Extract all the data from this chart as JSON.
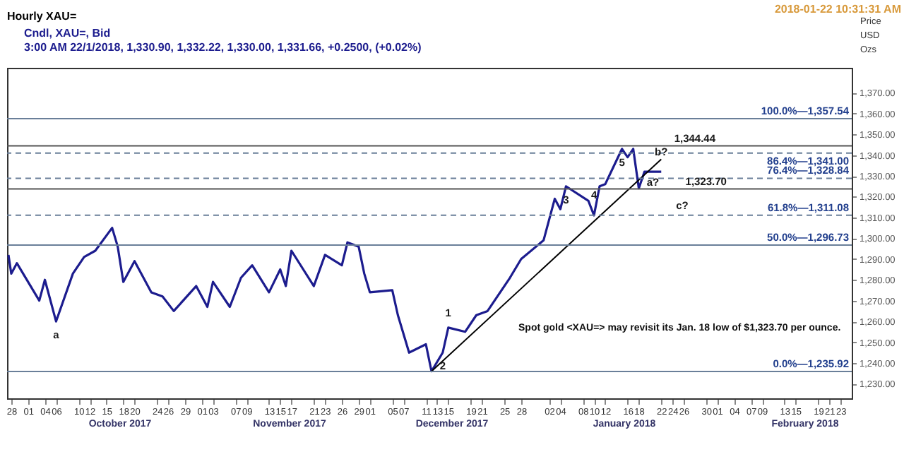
{
  "chart_data": {
    "type": "line",
    "title": "Hourly XAU=",
    "subtitle": "Cndl, XAU=, Bid\n3:00 AM 22/1/2018, 1,330.90, 1,332.22, 1,330.00, 1,331.66, +0.2500, (+0.02%)",
    "ylabel": "Price USD Ozs",
    "series": [
      {
        "color": "#1c1c8e",
        "line_style": "solid",
        "x": [
          "2017-09-27T12:00",
          "2017-09-28",
          "2017-09-29",
          "2017-10-03",
          "2017-10-04",
          "2017-10-06",
          "2017-10-09",
          "2017-10-11",
          "2017-10-13",
          "2017-10-16",
          "2017-10-17",
          "2017-10-18",
          "2017-10-20",
          "2017-10-23",
          "2017-10-25",
          "2017-10-27",
          "2017-10-31",
          "2017-11-02",
          "2017-11-03",
          "2017-11-06",
          "2017-11-08",
          "2017-11-10",
          "2017-11-13",
          "2017-11-15",
          "2017-11-16",
          "2017-11-17",
          "2017-11-21",
          "2017-11-23",
          "2017-11-26",
          "2017-11-27",
          "2017-11-29",
          "2017-11-30",
          "2017-12-01",
          "2017-12-05",
          "2017-12-06",
          "2017-12-08",
          "2017-12-11",
          "2017-12-12",
          "2017-12-14",
          "2017-12-15",
          "2017-12-18",
          "2017-12-20",
          "2017-12-22",
          "2017-12-26",
          "2017-12-28",
          "2018-01-01",
          "2018-01-03",
          "2018-01-04",
          "2018-01-05",
          "2018-01-09",
          "2018-01-10",
          "2018-01-11",
          "2018-01-12",
          "2018-01-15",
          "2018-01-16",
          "2018-01-17",
          "2018-01-18",
          "2018-01-19",
          "2018-01-22"
        ],
        "values": [
          1292,
          1283,
          1288,
          1270,
          1280,
          1260,
          1283,
          1291,
          1294,
          1305,
          1296,
          1279,
          1289,
          1274,
          1272,
          1265,
          1277,
          1267,
          1279,
          1267,
          1281,
          1287,
          1274,
          1285,
          1277,
          1294,
          1277,
          1292,
          1287,
          1298,
          1296,
          1283,
          1274,
          1275,
          1263,
          1245,
          1249,
          1236,
          1245,
          1257,
          1255,
          1263,
          1265,
          1281,
          1290,
          1299,
          1319,
          1314,
          1325,
          1318,
          1311,
          1325,
          1326,
          1343,
          1339,
          1343,
          1324,
          1332,
          1332
        ]
      },
      {
        "color": "#000000",
        "line_style": "solid",
        "x": [
          "2017-12-12",
          "2018-01-22"
        ],
        "values": [
          1236,
          1338
        ]
      }
    ],
    "xlim": [
      "2017-09-27T06:00",
      "2018-02-25"
    ],
    "xticks": [
      {
        "value": "2017-09-28",
        "label": "28"
      },
      {
        "value": "2017-10-01",
        "label": "01"
      },
      {
        "value": "2017-10-04",
        "label": "04"
      },
      {
        "value": "2017-10-06",
        "label": "06"
      },
      {
        "value": "2017-10-10",
        "label": "10"
      },
      {
        "value": "2017-10-12",
        "label": "12"
      },
      {
        "value": "2017-10-15",
        "label": "15"
      },
      {
        "value": "2017-10-18",
        "label": "18"
      },
      {
        "value": "2017-10-20",
        "label": "20"
      },
      {
        "value": "2017-10-24",
        "label": "24"
      },
      {
        "value": "2017-10-26",
        "label": "26"
      },
      {
        "value": "2017-10-29",
        "label": "29"
      },
      {
        "value": "2017-11-01",
        "label": "01"
      },
      {
        "value": "2017-11-03",
        "label": "03"
      },
      {
        "value": "2017-11-07",
        "label": "07"
      },
      {
        "value": "2017-11-09",
        "label": "09"
      },
      {
        "value": "2017-11-13",
        "label": "13"
      },
      {
        "value": "2017-11-15",
        "label": "15"
      },
      {
        "value": "2017-11-17",
        "label": "17"
      },
      {
        "value": "2017-11-21",
        "label": "21"
      },
      {
        "value": "2017-11-23",
        "label": "23"
      },
      {
        "value": "2017-11-26",
        "label": "26"
      },
      {
        "value": "2017-11-29",
        "label": "29"
      },
      {
        "value": "2017-12-01",
        "label": "01"
      },
      {
        "value": "2017-12-05",
        "label": "05"
      },
      {
        "value": "2017-12-07",
        "label": "07"
      },
      {
        "value": "2017-12-11",
        "label": "11"
      },
      {
        "value": "2017-12-13",
        "label": "13"
      },
      {
        "value": "2017-12-15",
        "label": "15"
      },
      {
        "value": "2017-12-19",
        "label": "19"
      },
      {
        "value": "2017-12-21",
        "label": "21"
      },
      {
        "value": "2017-12-25",
        "label": "25"
      },
      {
        "value": "2017-12-28",
        "label": "28"
      },
      {
        "value": "2018-01-02",
        "label": "02"
      },
      {
        "value": "2018-01-04",
        "label": "04"
      },
      {
        "value": "2018-01-08",
        "label": "08"
      },
      {
        "value": "2018-01-10",
        "label": "10"
      },
      {
        "value": "2018-01-12",
        "label": "12"
      },
      {
        "value": "2018-01-16",
        "label": "16"
      },
      {
        "value": "2018-01-18",
        "label": "18"
      },
      {
        "value": "2018-01-22",
        "label": "22"
      },
      {
        "value": "2018-01-24",
        "label": "24"
      },
      {
        "value": "2018-01-26",
        "label": "26"
      },
      {
        "value": "2018-01-30",
        "label": "30"
      },
      {
        "value": "2018-02-01",
        "label": "01"
      },
      {
        "value": "2018-02-04",
        "label": "04"
      },
      {
        "value": "2018-02-07",
        "label": "07"
      },
      {
        "value": "2018-02-09",
        "label": "09"
      },
      {
        "value": "2018-02-13",
        "label": "13"
      },
      {
        "value": "2018-02-15",
        "label": "15"
      },
      {
        "value": "2018-02-19",
        "label": "19"
      },
      {
        "value": "2018-02-21",
        "label": "21"
      },
      {
        "value": "2018-02-23",
        "label": "23"
      }
    ],
    "ylim": [
      1223,
      1382
    ],
    "yticks": [
      {
        "value": 1230,
        "label": "1,230.00"
      },
      {
        "value": 1240,
        "label": "1,240.00"
      },
      {
        "value": 1250,
        "label": "1,250.00"
      },
      {
        "value": 1260,
        "label": "1,260.00"
      },
      {
        "value": 1270,
        "label": "1,270.00"
      },
      {
        "value": 1280,
        "label": "1,280.00"
      },
      {
        "value": 1290,
        "label": "1,290.00"
      },
      {
        "value": 1300,
        "label": "1,300.00"
      },
      {
        "value": 1310,
        "label": "1,310.00"
      },
      {
        "value": 1320,
        "label": "1,320.00"
      },
      {
        "value": 1330,
        "label": "1,330.00"
      },
      {
        "value": 1340,
        "label": "1,340.00"
      },
      {
        "value": 1350,
        "label": "1,350.00"
      },
      {
        "value": 1360,
        "label": "1,360.00"
      },
      {
        "value": 1370,
        "label": "1,370.00"
      }
    ],
    "ref_lines": [
      {
        "axis": "y",
        "value": 1357.54,
        "label": "100.0%—1,357.54",
        "color": "#6a7f99",
        "line_style": "solid"
      },
      {
        "axis": "y",
        "value": 1341.0,
        "label": "86.4%—1,341.00",
        "color": "#6a7f99",
        "line_style": "dashed"
      },
      {
        "axis": "y",
        "value": 1328.84,
        "label": "76.4%—1,328.84",
        "color": "#6a7f99",
        "line_style": "dashed"
      },
      {
        "axis": "y",
        "value": 1311.08,
        "label": "61.8%—1,311.08",
        "color": "#6a7f99",
        "line_style": "dashed"
      },
      {
        "axis": "y",
        "value": 1296.73,
        "label": "50.0%—1,296.73",
        "color": "#6a7f99",
        "line_style": "solid"
      },
      {
        "axis": "y",
        "value": 1235.92,
        "label": "0.0%—1,235.92",
        "color": "#6a7f99",
        "line_style": "solid"
      },
      {
        "axis": "y",
        "value": 1344.44,
        "color": "#555555",
        "line_style": "solid"
      },
      {
        "axis": "y",
        "value": 1323.7,
        "color": "#555555",
        "line_style": "solid"
      }
    ],
    "annotations": [
      "2018-01-22 10:31:31 AM",
      "Spot gold <XAU=> may revisit its Jan. 18 low of $1,323.70 per ounce.",
      "October 2017",
      "November 2017",
      "December 2017",
      "January 2018",
      "February 2018",
      {
        "text": "1,344.44",
        "x": "2018-01-28",
        "y": 1344.44
      },
      {
        "text": "1,323.70",
        "x": "2018-01-30",
        "y": 1323.7
      },
      {
        "text": "a",
        "x": "2017-10-06",
        "y": 1260
      },
      {
        "text": "1",
        "x": "2017-12-15",
        "y": 1257
      },
      {
        "text": "2",
        "x": "2017-12-14",
        "y": 1245
      },
      {
        "text": "3",
        "x": "2018-01-05",
        "y": 1325
      },
      {
        "text": "4",
        "x": "2018-01-10",
        "y": 1311
      },
      {
        "text": "5",
        "x": "2018-01-15",
        "y": 1343
      },
      {
        "text": "a?",
        "x": "2018-01-18",
        "y": 1324
      },
      {
        "text": "b?",
        "x": "2018-01-22",
        "y": 1338
      },
      "c?"
    ],
    "grid": false
  }
}
